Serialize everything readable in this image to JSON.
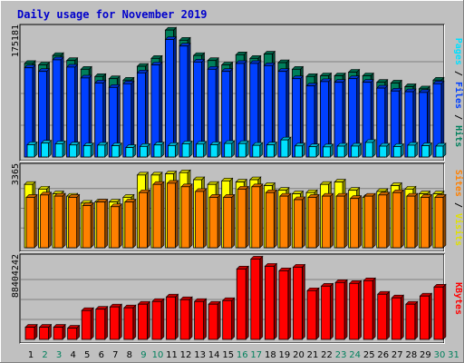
{
  "title": "Daily usage for November 2019",
  "colors": {
    "frame_bg": "#c0c0c0",
    "plot_bg": "#c0c0c0",
    "title": "#0000cc",
    "hits": "#00805c",
    "files": "#0040ff",
    "pages": "#00e0ff",
    "visits": "#ffff00",
    "sites": "#ff8000",
    "kbytes": "#ff0000",
    "weekend_day": "#00805c",
    "weekday_day": "#000000"
  },
  "chart_data": [
    {
      "type": "bar",
      "panel": "hits-files-pages",
      "ylabel_parts": [
        "Pages",
        "Files",
        "Hits"
      ],
      "max_label": "175181",
      "ylim": [
        0,
        175181
      ],
      "categories": [
        "1",
        "2",
        "3",
        "4",
        "5",
        "6",
        "7",
        "8",
        "9",
        "10",
        "11",
        "12",
        "13",
        "14",
        "15",
        "16",
        "17",
        "18",
        "19",
        "20",
        "21",
        "22",
        "23",
        "24",
        "25",
        "26",
        "27",
        "28",
        "29",
        "30"
      ],
      "series": [
        {
          "name": "Hits",
          "values": [
            129000,
            127000,
            140000,
            133000,
            121000,
            111000,
            108000,
            106000,
            125000,
            136000,
            175000,
            161000,
            140000,
            133000,
            127000,
            141000,
            136000,
            142000,
            130000,
            121000,
            111000,
            112000,
            112000,
            117000,
            112000,
            103000,
            102000,
            97000,
            94000,
            106000
          ]
        },
        {
          "name": "Files",
          "values": [
            123000,
            118000,
            134000,
            124000,
            109000,
            102000,
            96000,
            101000,
            116000,
            127000,
            162000,
            153000,
            131000,
            121000,
            118000,
            129000,
            129000,
            126000,
            118000,
            108000,
            98000,
            104000,
            103000,
            108000,
            103000,
            95000,
            91000,
            90000,
            89000,
            101000
          ]
        },
        {
          "name": "Pages",
          "values": [
            16900,
            19200,
            18200,
            16600,
            15500,
            16400,
            15500,
            13000,
            14600,
            16600,
            15800,
            18200,
            17800,
            16900,
            18700,
            18500,
            16100,
            16700,
            23600,
            15300,
            14200,
            14000,
            15000,
            15100,
            20100,
            15000,
            14400,
            16300,
            15600,
            15100
          ]
        }
      ]
    },
    {
      "type": "bar",
      "panel": "visits-sites",
      "ylabel_parts": [
        "Sites",
        "Visits"
      ],
      "max_label": "3365",
      "ylim": [
        0,
        3365
      ],
      "categories": [
        "1",
        "2",
        "3",
        "4",
        "5",
        "6",
        "7",
        "8",
        "9",
        "10",
        "11",
        "12",
        "13",
        "14",
        "15",
        "16",
        "17",
        "18",
        "19",
        "20",
        "21",
        "22",
        "23",
        "24",
        "25",
        "26",
        "27",
        "28",
        "29",
        "30"
      ],
      "series": [
        {
          "name": "Visits",
          "values": [
            2700,
            2500,
            2300,
            2200,
            1900,
            1950,
            1950,
            2150,
            3100,
            3100,
            3150,
            3200,
            2900,
            2700,
            2850,
            2800,
            2900,
            2650,
            2450,
            2300,
            2350,
            2700,
            2800,
            2450,
            2150,
            2400,
            2650,
            2500,
            2300,
            2300
          ]
        },
        {
          "name": "Sites",
          "values": [
            2150,
            2250,
            2200,
            2150,
            1800,
            1950,
            1750,
            1950,
            2350,
            2700,
            2750,
            2600,
            2400,
            2150,
            2150,
            2500,
            2600,
            2350,
            2200,
            2050,
            2150,
            2200,
            2200,
            2100,
            2200,
            2250,
            2350,
            2200,
            2150,
            2150
          ]
        }
      ]
    },
    {
      "type": "bar",
      "panel": "kbytes",
      "ylabel_parts": [
        "KBytes"
      ],
      "max_label": "88404242",
      "ylim": [
        0,
        88404242
      ],
      "categories": [
        "1",
        "2",
        "3",
        "4",
        "5",
        "6",
        "7",
        "8",
        "9",
        "10",
        "11",
        "12",
        "13",
        "14",
        "15",
        "16",
        "17",
        "18",
        "19",
        "20",
        "21",
        "22",
        "23",
        "24",
        "25",
        "26",
        "27",
        "28",
        "29",
        "30"
      ],
      "series": [
        {
          "name": "KBytes",
          "values": [
            13500000,
            13500000,
            13500000,
            12500000,
            32000000,
            33500000,
            36000000,
            35000000,
            39000000,
            42000000,
            47000000,
            44000000,
            42000000,
            39000000,
            43000000,
            78000000,
            89000000,
            81000000,
            76000000,
            80000000,
            54000000,
            59000000,
            63000000,
            62000000,
            65000000,
            50000000,
            46000000,
            39000000,
            48000000,
            58000000
          ]
        }
      ]
    }
  ],
  "x_days": [
    {
      "label": "1",
      "weekend": false
    },
    {
      "label": "2",
      "weekend": true
    },
    {
      "label": "3",
      "weekend": true
    },
    {
      "label": "4",
      "weekend": false
    },
    {
      "label": "5",
      "weekend": false
    },
    {
      "label": "6",
      "weekend": false
    },
    {
      "label": "7",
      "weekend": false
    },
    {
      "label": "8",
      "weekend": false
    },
    {
      "label": "9",
      "weekend": true
    },
    {
      "label": "10",
      "weekend": true
    },
    {
      "label": "11",
      "weekend": false
    },
    {
      "label": "12",
      "weekend": false
    },
    {
      "label": "13",
      "weekend": false
    },
    {
      "label": "14",
      "weekend": false
    },
    {
      "label": "15",
      "weekend": false
    },
    {
      "label": "16",
      "weekend": true
    },
    {
      "label": "17",
      "weekend": true
    },
    {
      "label": "18",
      "weekend": false
    },
    {
      "label": "19",
      "weekend": false
    },
    {
      "label": "20",
      "weekend": false
    },
    {
      "label": "21",
      "weekend": false
    },
    {
      "label": "22",
      "weekend": false
    },
    {
      "label": "23",
      "weekend": true
    },
    {
      "label": "24",
      "weekend": true
    },
    {
      "label": "25",
      "weekend": false
    },
    {
      "label": "26",
      "weekend": false
    },
    {
      "label": "27",
      "weekend": false
    },
    {
      "label": "28",
      "weekend": false
    },
    {
      "label": "29",
      "weekend": false
    },
    {
      "label": "30",
      "weekend": true
    },
    {
      "label": "31",
      "weekend": true
    }
  ]
}
